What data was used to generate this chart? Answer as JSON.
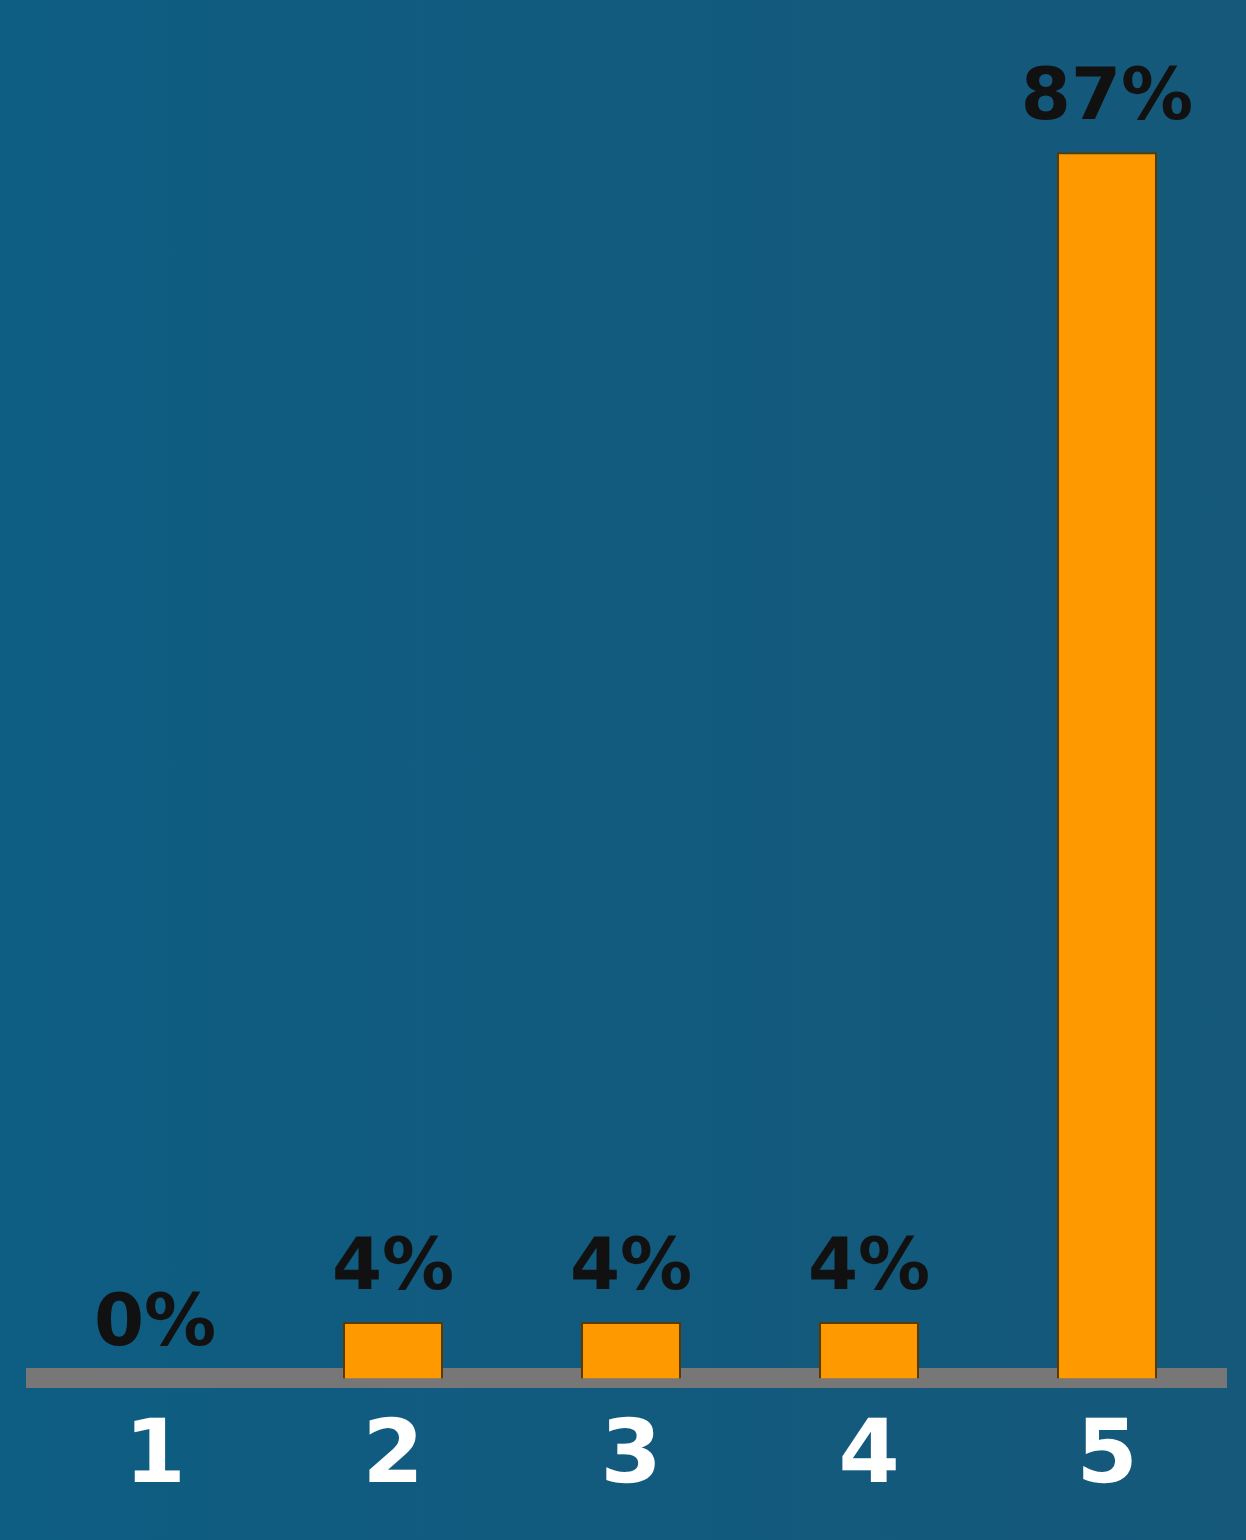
{
  "chart_data": {
    "type": "bar",
    "categories": [
      "1",
      "2",
      "3",
      "4",
      "5"
    ],
    "values": [
      0,
      4,
      4,
      4,
      87
    ],
    "value_labels": [
      "0%",
      "4%",
      "4%",
      "4%",
      "87%"
    ],
    "color": "#ff9900",
    "grid": false,
    "legend": false
  }
}
